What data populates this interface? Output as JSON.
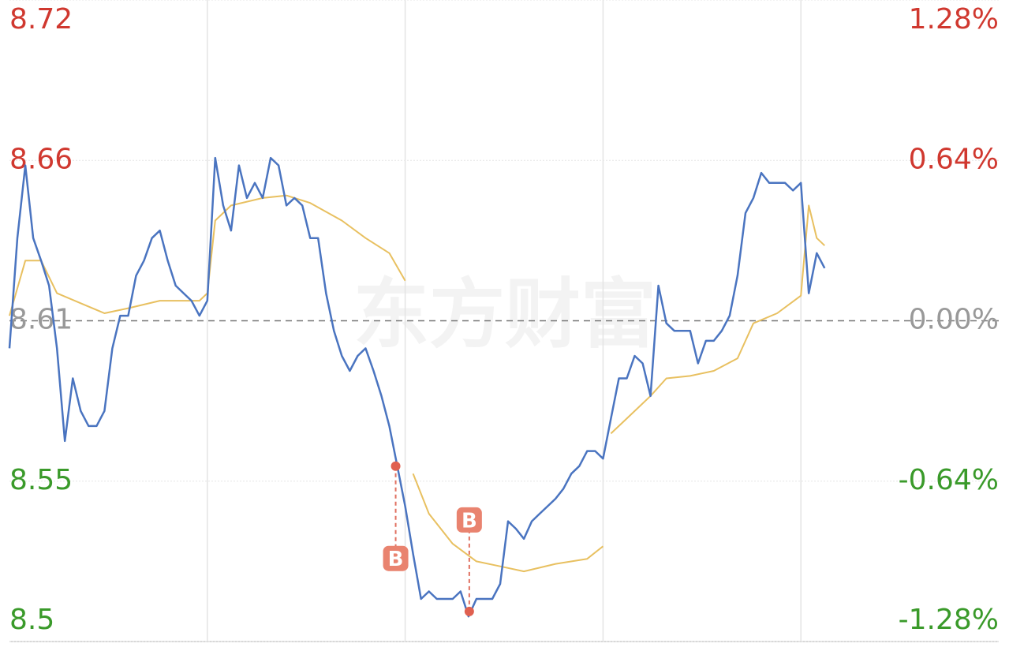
{
  "chart_data": {
    "type": "line",
    "watermark": "东方财富",
    "xlim": [
      0,
      125
    ],
    "xticks": [
      25,
      50,
      75,
      100
    ],
    "ylim": [
      8.5,
      8.72
    ],
    "yticks": [
      8.72,
      8.66,
      8.61,
      8.55,
      8.5
    ],
    "y2lim": [
      -1.28,
      1.28
    ],
    "y2ticks": [
      {
        "value": 1.28,
        "label": "1.28%"
      },
      {
        "value": 0.64,
        "label": "0.64%"
      },
      {
        "value": 0,
        "label": "0.00%"
      },
      {
        "value": -0.64,
        "label": "-0.64%"
      },
      {
        "value": -1.28,
        "label": "-1.28%"
      }
    ],
    "prev_close": 8.61,
    "up_color": "#d0382f",
    "down_color": "#3a9a2a",
    "flat_color": "#999999",
    "grid": true,
    "x": [
      0,
      1,
      2,
      3,
      4,
      5,
      6,
      7,
      8,
      9,
      10,
      11,
      12,
      13,
      14,
      15,
      16,
      17,
      18,
      19,
      20,
      21,
      22,
      23,
      24,
      25,
      26,
      27,
      28,
      29,
      30,
      31,
      32,
      33,
      34,
      35,
      36,
      37,
      38,
      39,
      40,
      41,
      42,
      43,
      44,
      45,
      46,
      47,
      48,
      49,
      50,
      51,
      52,
      53,
      54,
      55,
      56,
      57,
      58,
      59,
      60,
      61,
      62,
      63,
      64,
      65,
      66,
      67,
      68,
      69,
      70,
      71,
      72,
      73,
      74,
      75,
      76,
      77,
      78,
      79,
      80,
      81,
      82,
      83,
      84,
      85,
      86,
      87,
      88,
      89,
      90,
      91,
      92,
      93,
      94,
      95,
      96,
      97,
      98,
      99,
      100,
      101,
      102,
      103
    ],
    "series": [
      {
        "name": "price",
        "color": "#4a74c0",
        "axis": "y2",
        "values": [
          -0.11,
          0.33,
          0.62,
          0.33,
          0.24,
          0.14,
          -0.11,
          -0.48,
          -0.23,
          -0.36,
          -0.42,
          -0.42,
          -0.36,
          -0.11,
          0.02,
          0.02,
          0.18,
          0.24,
          0.33,
          0.36,
          0.24,
          0.14,
          0.11,
          0.08,
          0.02,
          0.08,
          0.65,
          0.46,
          0.36,
          0.62,
          0.49,
          0.55,
          0.49,
          0.65,
          0.62,
          0.46,
          0.49,
          0.46,
          0.33,
          0.33,
          0.11,
          -0.04,
          -0.14,
          -0.2,
          -0.14,
          -0.11,
          -0.2,
          -0.3,
          -0.42,
          -0.58,
          -0.74,
          -0.93,
          -1.11,
          -1.08,
          -1.11,
          -1.11,
          -1.11,
          -1.08,
          -1.18,
          -1.11,
          -1.11,
          -1.11,
          -1.05,
          -0.8,
          -0.83,
          -0.87,
          -0.8,
          -0.77,
          -0.74,
          -0.71,
          -0.67,
          -0.61,
          -0.58,
          -0.52,
          -0.52,
          -0.55,
          -0.39,
          -0.23,
          -0.23,
          -0.14,
          -0.17,
          -0.3,
          0.14,
          -0.01,
          -0.04,
          -0.04,
          -0.04,
          -0.17,
          -0.08,
          -0.08,
          -0.04,
          0.02,
          0.18,
          0.43,
          0.49,
          0.59,
          0.55,
          0.55,
          0.55,
          0.52,
          0.55,
          0.11,
          0.27,
          0.21
        ]
      },
      {
        "name": "average",
        "color": "#e8c060",
        "axis": "y2",
        "x": [
          0,
          2,
          4,
          6,
          9,
          12,
          15,
          19,
          24,
          25,
          26,
          28,
          32,
          35,
          38,
          42,
          45,
          48,
          50,
          50.5,
          51,
          53,
          56,
          59,
          62,
          65,
          69,
          73,
          75,
          75.5,
          76,
          78,
          81,
          83,
          86,
          89,
          92,
          94,
          97,
          100,
          101,
          102,
          103
        ],
        "values": [
          0.02,
          0.24,
          0.24,
          0.11,
          0.07,
          0.03,
          0.05,
          0.08,
          0.08,
          0.11,
          0.4,
          0.46,
          0.49,
          0.5,
          0.47,
          0.4,
          0.33,
          0.27,
          0.16,
          null,
          -0.61,
          -0.77,
          -0.89,
          -0.96,
          -0.98,
          -1.0,
          -0.97,
          -0.95,
          -0.9,
          null,
          -0.45,
          -0.39,
          -0.3,
          -0.23,
          -0.22,
          -0.2,
          -0.15,
          -0.01,
          0.03,
          0.1,
          0.46,
          0.33,
          0.3
        ]
      }
    ],
    "annotations": [
      {
        "text": "B",
        "x": 48.8,
        "value": -0.58,
        "label_position": "below"
      },
      {
        "text": "B",
        "x": 58.1,
        "value": -1.16,
        "label_position": "above"
      }
    ]
  }
}
